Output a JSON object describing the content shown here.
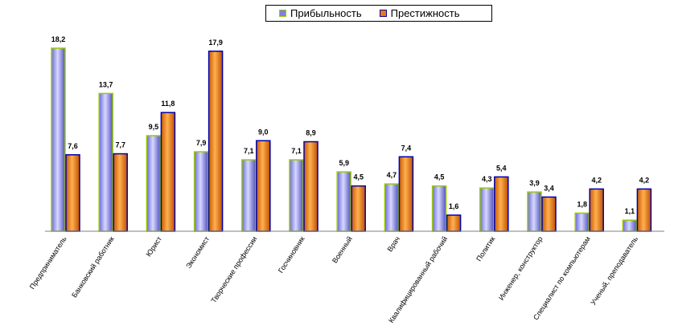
{
  "chart_data": {
    "type": "bar",
    "categories": [
      "Предприниматель",
      "Банковский работник",
      "Юрист",
      "Экономист",
      "Творческие профессии",
      "Госчиновник",
      "Военный",
      "Врач",
      "Квалифицированный рабочий",
      "Политик",
      "Инженер, конструктор",
      "Специалист по компьютерам",
      "Ученый, преподаватель"
    ],
    "series": [
      {
        "name": "Прибыльность",
        "color": "#8080e0",
        "edge": "#99cc00",
        "values": [
          18.2,
          13.7,
          9.5,
          7.9,
          7.1,
          7.1,
          5.9,
          4.7,
          4.5,
          4.3,
          3.9,
          1.8,
          1.1
        ],
        "labels": [
          "18,2",
          "13,7",
          "9,5",
          "7,9",
          "7,1",
          "7,1",
          "5,9",
          "4,7",
          "4,5",
          "4,3",
          "3,9",
          "1,8",
          "1,1"
        ]
      },
      {
        "name": "Престижность",
        "color": "#e87a10",
        "edge": "#0000aa",
        "values": [
          7.6,
          7.7,
          11.8,
          17.9,
          9.0,
          8.9,
          4.5,
          7.4,
          1.6,
          5.4,
          3.4,
          4.2,
          4.2
        ],
        "labels": [
          "7,6",
          "7,7",
          "11,8",
          "17,9",
          "9,0",
          "8,9",
          "4,5",
          "7,4",
          "1,6",
          "5,4",
          "3,4",
          "4,2",
          "4,2"
        ]
      }
    ],
    "ylim": [
      0,
      18.2
    ],
    "grid": false,
    "legend_position": "top"
  }
}
